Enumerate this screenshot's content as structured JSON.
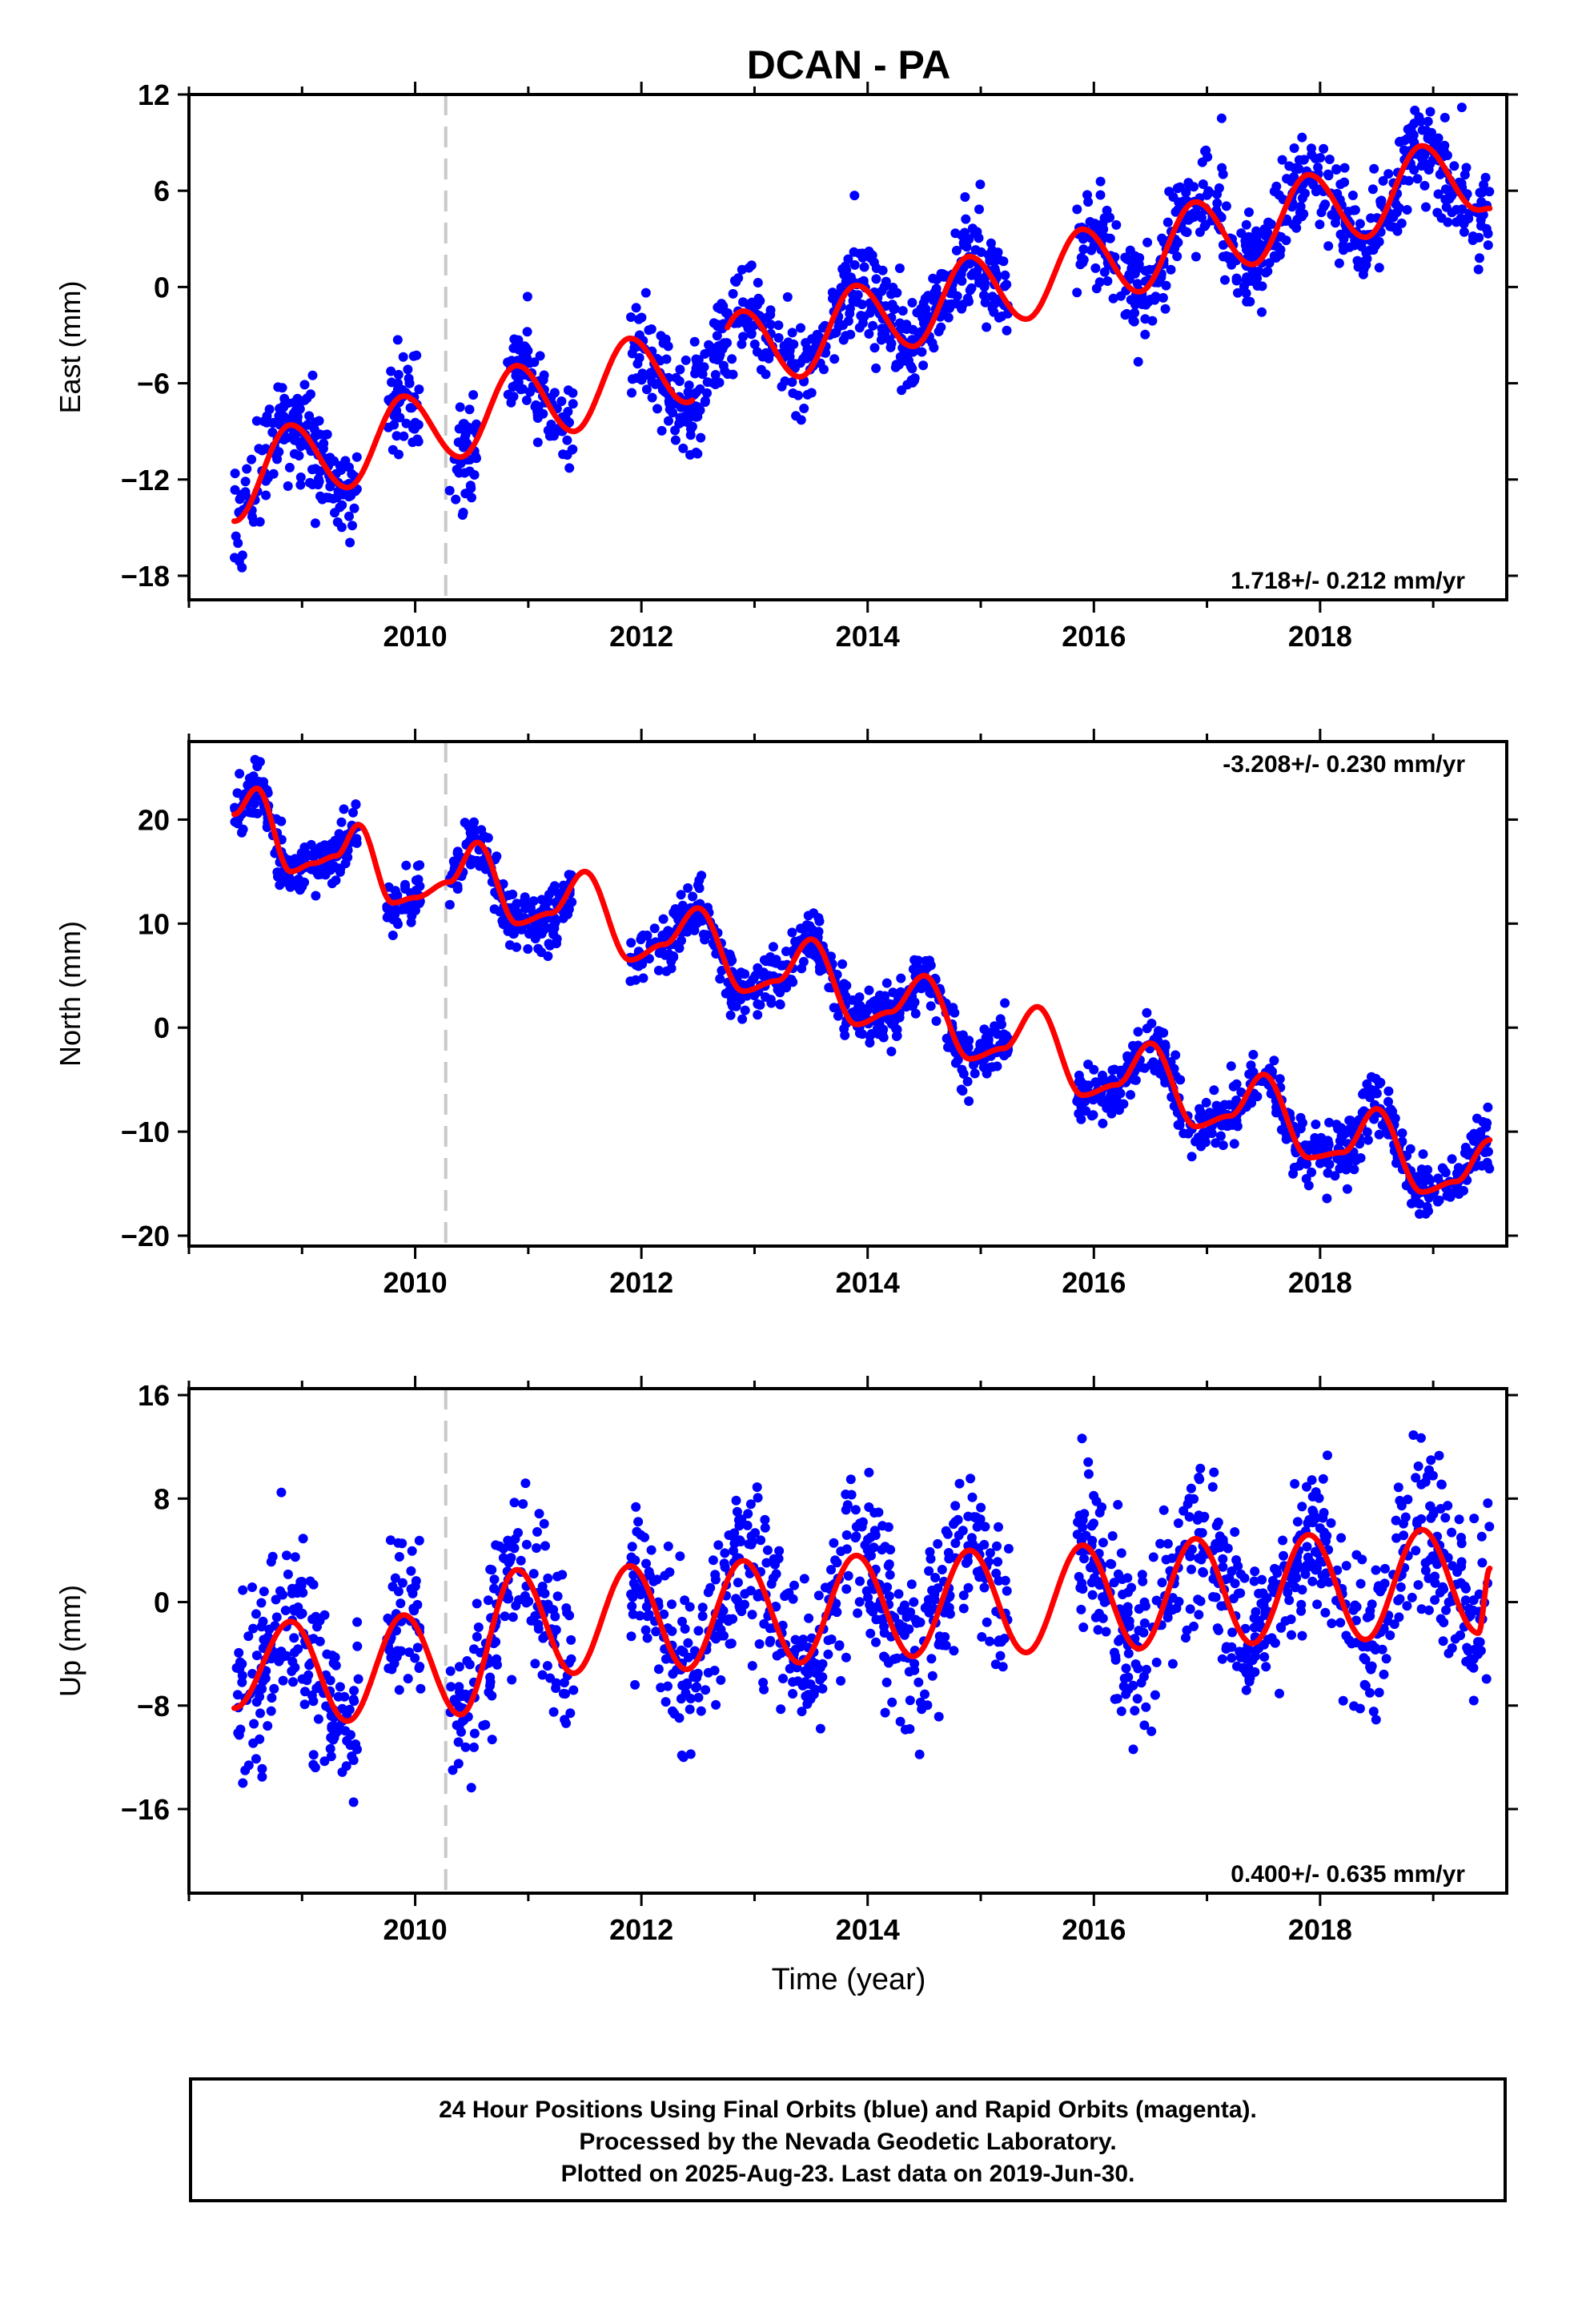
{
  "chart_data": {
    "type": "scatter",
    "title": "DCAN - PA",
    "xlabel": "Time (year)",
    "xlim": [
      2008.0,
      2019.65
    ],
    "x_ticks": [
      2010,
      2012,
      2014,
      2016,
      2018
    ],
    "data_start": 2008.4,
    "data_end": 2019.5,
    "offset_marker_x": 2010.27,
    "point_color": "#0000ff",
    "model_color": "#ff0000",
    "marker_color": "#c8c8c8",
    "panels": [
      {
        "name": "East",
        "ylabel": "East (mm)",
        "ylim": [
          -19.5,
          12
        ],
        "y_ticks": [
          12,
          6,
          0,
          -6,
          -12,
          -18
        ],
        "rate_label": "1.718+/- 0.212 mm/yr",
        "rate_position": "bottom-right",
        "model": {
          "x": [
            2008.4,
            2008.9,
            2009.4,
            2009.9,
            2010.4,
            2010.9,
            2011.4,
            2011.9,
            2012.4,
            2012.9,
            2013.4,
            2013.9,
            2014.4,
            2014.9,
            2015.4,
            2015.9,
            2016.4,
            2016.9,
            2017.4,
            2017.9,
            2018.4,
            2018.9,
            2019.4,
            2019.5
          ],
          "y": [
            -14.6,
            -8.6,
            -12.5,
            -6.8,
            -10.6,
            -4.9,
            -9.0,
            -3.2,
            -7.2,
            -1.5,
            -5.6,
            0.1,
            -3.7,
            1.9,
            -2.0,
            3.6,
            -0.3,
            5.3,
            1.4,
            7.0,
            3.1,
            8.8,
            4.8,
            4.9
          ],
          "gaps": [
            [
              2012.45,
              2012.75
            ]
          ]
        },
        "scatter": {
          "count": 1500,
          "spread": 1.5,
          "seed": 11
        },
        "data_gaps": [
          [
            2009.5,
            2009.75
          ],
          [
            2010.05,
            2010.3
          ],
          [
            2010.55,
            2010.8
          ],
          [
            2011.4,
            2011.9
          ],
          [
            2015.25,
            2015.85
          ]
        ]
      },
      {
        "name": "North",
        "ylabel": "North (mm)",
        "ylim": [
          -21,
          27.5
        ],
        "y_ticks": [
          20,
          10,
          0,
          -10,
          -20
        ],
        "rate_label": "-3.208+/- 0.230 mm/yr",
        "rate_position": "top-right",
        "model": {
          "x": [
            2008.4,
            2008.6,
            2008.9,
            2009.1,
            2009.3,
            2009.5,
            2009.8,
            2010.0,
            2010.3,
            2010.55,
            2010.9,
            2011.2,
            2011.5,
            2011.9,
            2012.2,
            2012.5,
            2012.9,
            2013.2,
            2013.5,
            2013.9,
            2014.2,
            2014.5,
            2014.9,
            2015.2,
            2015.5,
            2015.9,
            2016.2,
            2016.5,
            2016.9,
            2017.2,
            2017.5,
            2017.9,
            2018.2,
            2018.5,
            2018.9,
            2019.2,
            2019.5
          ],
          "y": [
            20.5,
            23.0,
            15.0,
            15.8,
            16.5,
            19.5,
            12.0,
            12.5,
            14.0,
            17.8,
            10.0,
            11.0,
            15.0,
            6.5,
            8.0,
            11.5,
            3.5,
            4.5,
            8.5,
            0.3,
            1.5,
            5.0,
            -3.0,
            -2.0,
            2.0,
            -6.5,
            -5.5,
            -1.5,
            -9.5,
            -8.5,
            -4.5,
            -12.5,
            -12.0,
            -7.8,
            -15.8,
            -14.8,
            -10.8
          ]
        },
        "scatter": {
          "count": 1500,
          "spread": 1.4,
          "seed": 23
        },
        "data_gaps": [
          [
            2009.5,
            2009.75
          ],
          [
            2010.05,
            2010.3
          ],
          [
            2011.4,
            2011.9
          ],
          [
            2015.25,
            2015.85
          ]
        ]
      },
      {
        "name": "Up",
        "ylabel": "Up (mm)",
        "ylim": [
          -22.5,
          16.5
        ],
        "y_ticks": [
          16,
          8,
          0,
          -8,
          -16
        ],
        "rate_label": "0.400+/- 0.635 mm/yr",
        "rate_position": "bottom-right",
        "model": {
          "x": [
            2008.4,
            2008.9,
            2009.4,
            2009.9,
            2010.4,
            2010.9,
            2011.4,
            2011.9,
            2012.4,
            2012.9,
            2013.4,
            2013.9,
            2014.4,
            2014.9,
            2015.4,
            2015.9,
            2016.4,
            2016.9,
            2017.4,
            2017.9,
            2018.4,
            2018.9,
            2019.4,
            2019.5
          ],
          "y": [
            -8.2,
            -1.5,
            -9.2,
            -1.0,
            -8.7,
            2.5,
            -5.5,
            2.8,
            -5.2,
            3.2,
            -4.7,
            3.6,
            -4.2,
            4.0,
            -3.9,
            4.4,
            -3.6,
            4.9,
            -3.2,
            5.2,
            -2.9,
            5.6,
            -2.4,
            2.6
          ]
        },
        "scatter": {
          "count": 1500,
          "spread": 3.2,
          "seed": 37
        },
        "data_gaps": [
          [
            2009.5,
            2009.75
          ],
          [
            2010.05,
            2010.3
          ],
          [
            2011.4,
            2011.9
          ],
          [
            2015.25,
            2015.85
          ]
        ]
      }
    ]
  },
  "footer": {
    "line1": "24 Hour Positions Using Final Orbits (blue) and Rapid Orbits (magenta).",
    "line2": "Processed by the Nevada Geodetic Laboratory.",
    "line3": "Plotted on 2025-Aug-23. Last data on 2019-Jun-30."
  }
}
